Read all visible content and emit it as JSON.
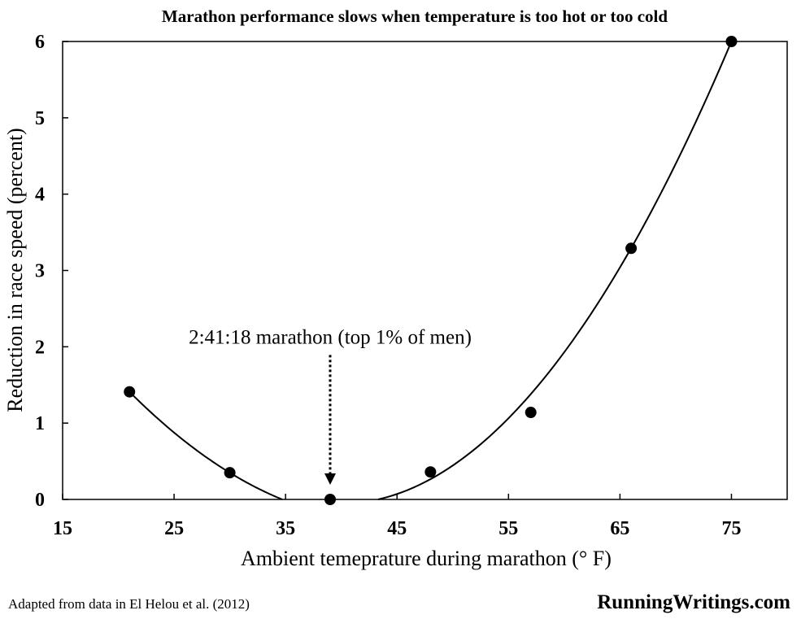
{
  "chart_data": {
    "type": "scatter",
    "title": "Marathon performance slows when temperature is too hot or too cold",
    "xlabel": "Ambient temeprature during marathon (° F)",
    "ylabel": "Reduction in race speed (percent)",
    "xlim": [
      15,
      80
    ],
    "ylim": [
      0,
      6
    ],
    "x_ticks": [
      15,
      25,
      35,
      45,
      55,
      65,
      75
    ],
    "y_ticks": [
      0,
      1,
      2,
      3,
      4,
      5,
      6
    ],
    "grid": false,
    "legend": "none",
    "points": [
      {
        "x": 21,
        "y": 1.41
      },
      {
        "x": 30,
        "y": 0.35
      },
      {
        "x": 39,
        "y": 0.0
      },
      {
        "x": 48,
        "y": 0.36
      },
      {
        "x": 57,
        "y": 1.14
      },
      {
        "x": 66,
        "y": 3.29
      },
      {
        "x": 75,
        "y": 6.0
      }
    ],
    "fit_curves": [
      {
        "type": "quadratic",
        "x_range": [
          21,
          34.7
        ],
        "points": [
          [
            21,
            1.41
          ],
          [
            30,
            0.35
          ],
          [
            34.7,
            0.0
          ]
        ]
      },
      {
        "type": "quadratic",
        "x_range": [
          43.3,
          75
        ],
        "points": [
          [
            43.3,
            0.0
          ],
          [
            57,
            1.38
          ],
          [
            75,
            6.0
          ]
        ]
      }
    ],
    "annotation": {
      "text": "2:41:18 marathon (top 1% of men)",
      "x": 39,
      "y": 2.0
    }
  },
  "footer": {
    "source": "Adapted from data in El Helou et al. (2012)",
    "brand": "RunningWritings.com"
  },
  "colors": {
    "ink": "#000000",
    "background": "#ffffff"
  }
}
